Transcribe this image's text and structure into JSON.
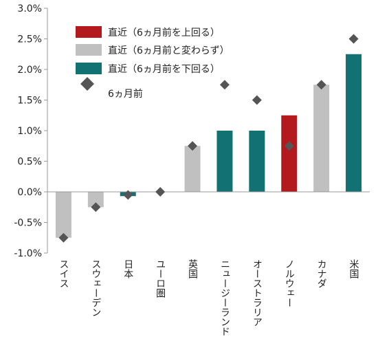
{
  "chart_data": {
    "type": "bar",
    "categories": [
      "スイス",
      "スウェーデン",
      "日本",
      "ユーロ圏",
      "英国",
      "ニュージーランド",
      "オーストラリア",
      "ノルウェー",
      "カナダ",
      "米国"
    ],
    "series": [
      {
        "name": "直近",
        "values": [
          -0.75,
          -0.25,
          -0.07,
          0.0,
          0.75,
          1.0,
          1.0,
          1.25,
          1.75,
          2.25
        ],
        "status": [
          "same",
          "same",
          "lower",
          "same",
          "same",
          "lower",
          "lower",
          "higher",
          "same",
          "lower"
        ]
      },
      {
        "name": "6ヵ月前",
        "values": [
          -0.75,
          -0.25,
          -0.05,
          0.0,
          0.75,
          1.75,
          1.5,
          0.75,
          1.75,
          2.5
        ]
      }
    ],
    "ylim": [
      -1.0,
      3.0
    ],
    "yticks": [
      "-1.0%",
      "-0.5%",
      "0.0%",
      "0.5%",
      "1.0%",
      "1.5%",
      "2.0%",
      "2.5%",
      "3.0%"
    ],
    "ytick_values": [
      -1.0,
      -0.5,
      0.0,
      0.5,
      1.0,
      1.5,
      2.0,
      2.5,
      3.0
    ],
    "legend": [
      {
        "key": "higher",
        "label": "直近（6ヵ月前を上回る）",
        "color": "#b4191e",
        "marker": "rect"
      },
      {
        "key": "same",
        "label": "直近（6ヵ月前と変わらず）",
        "color": "#c0c0c0",
        "marker": "rect"
      },
      {
        "key": "lower",
        "label": "直近（6ヵ月前を下回る）",
        "color": "#127172",
        "marker": "rect"
      },
      {
        "key": "prev",
        "label": "6ヵ月前",
        "color": "#555555",
        "marker": "diamond"
      }
    ],
    "legend_position": "top-left",
    "grid": false
  }
}
